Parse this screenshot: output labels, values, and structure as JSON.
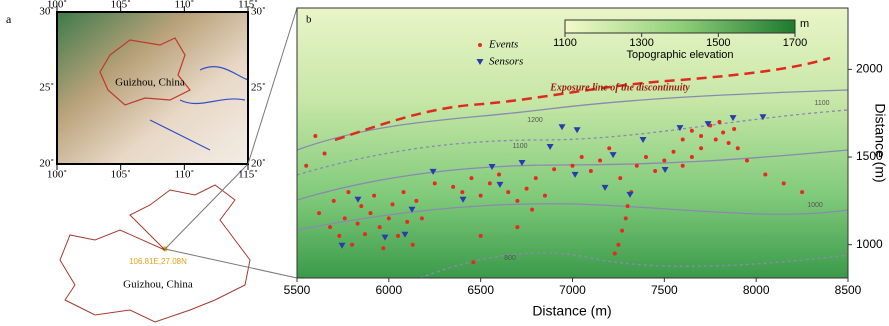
{
  "panel_a": {
    "label": "a",
    "map": {
      "xlim": [
        100,
        115
      ],
      "ylim": [
        20,
        30
      ],
      "xticks": [
        {
          "value": 100,
          "label": "100˚"
        },
        {
          "value": 105,
          "label": "105˚"
        },
        {
          "value": 110,
          "label": "110˚"
        },
        {
          "value": 115,
          "label": "115˚"
        }
      ],
      "yticks": [
        {
          "value": 20,
          "label": "20˚"
        },
        {
          "value": 25,
          "label": "25˚"
        },
        {
          "value": 30,
          "label": "30˚"
        }
      ],
      "region_label": "Guizhou, China"
    },
    "outline": {
      "site_label": "106.81E,27.08N",
      "region_label": "Guizhou, China"
    }
  },
  "chart_data": {
    "type": "scatter",
    "panel_label": "b",
    "xlabel": "Distance (m)",
    "ylabel": "Distance (m)",
    "xlim": [
      5500,
      8500
    ],
    "ylim": [
      810,
      2350
    ],
    "xticks": [
      5500,
      6000,
      6500,
      7000,
      7500,
      8000,
      8500
    ],
    "yticks": [
      1000,
      1500,
      2000
    ],
    "series": [
      {
        "name": "Events",
        "color": "#e8291c",
        "marker": "circle",
        "x": [
          5620,
          5680,
          5700,
          5730,
          5760,
          5780,
          5800,
          5830,
          5850,
          5870,
          5900,
          5920,
          5950,
          5970,
          6000,
          6020,
          6050,
          6080,
          6100,
          6130,
          6150,
          6180,
          5600,
          5550,
          5650,
          6250,
          6350,
          6400,
          6450,
          6500,
          6550,
          6600,
          6650,
          6700,
          6750,
          6780,
          6800,
          6850,
          6900,
          6500,
          6460,
          6700,
          7250,
          7270,
          7290,
          7300,
          7320,
          7260,
          7230,
          7000,
          7050,
          7100,
          7150,
          7200,
          7350,
          7400,
          7450,
          7500,
          7550,
          7600,
          7650,
          7700,
          7600,
          7650,
          7700,
          7750,
          7780,
          7800,
          7820,
          7850,
          7880,
          7900,
          7950,
          8050,
          8150,
          8250
        ],
        "y": [
          1180,
          1100,
          1250,
          1050,
          1150,
          1300,
          1000,
          1120,
          1220,
          1060,
          1180,
          1280,
          1100,
          980,
          1150,
          1230,
          1050,
          1300,
          1130,
          1000,
          1250,
          1150,
          1620,
          1450,
          1520,
          1350,
          1330,
          1300,
          1380,
          1280,
          1350,
          1400,
          1300,
          1250,
          1320,
          1200,
          1380,
          1280,
          1430,
          1050,
          900,
          1100,
          1000,
          1080,
          1150,
          1220,
          1300,
          1380,
          950,
          1450,
          1500,
          1420,
          1480,
          1550,
          1450,
          1500,
          1420,
          1480,
          1530,
          1450,
          1500,
          1550,
          1600,
          1650,
          1620,
          1680,
          1600,
          1700,
          1640,
          1580,
          1660,
          1550,
          1480,
          1400,
          1350,
          1300
        ]
      },
      {
        "name": "Sensors",
        "color": "#2a3bb0",
        "marker": "triangle",
        "x": [
          6943,
          7025,
          7221,
          7384,
          7585,
          7738,
          7874,
          8037,
          6878,
          6725,
          6562,
          6404,
          6241,
          6126,
          5832,
          5745,
          5979,
          6088,
          7014,
          7177,
          7313,
          7504,
          6605
        ],
        "y": [
          1670,
          1653,
          1511,
          1597,
          1665,
          1688,
          1722,
          1727,
          1557,
          1466,
          1443,
          1256,
          1415,
          1199,
          1256,
          994,
          1040,
          1057,
          1398,
          1324,
          1284,
          1426,
          1341
        ]
      }
    ],
    "colorbar": {
      "unit": "m",
      "label": "Topographic elevation",
      "lim": [
        1100,
        1700
      ],
      "ticks": [
        1100,
        1300,
        1500,
        1700
      ]
    },
    "annotation": "Exposure line of the discontinuity",
    "contour_labels": [
      1200,
      1100,
      1000,
      800,
      1100
    ]
  }
}
